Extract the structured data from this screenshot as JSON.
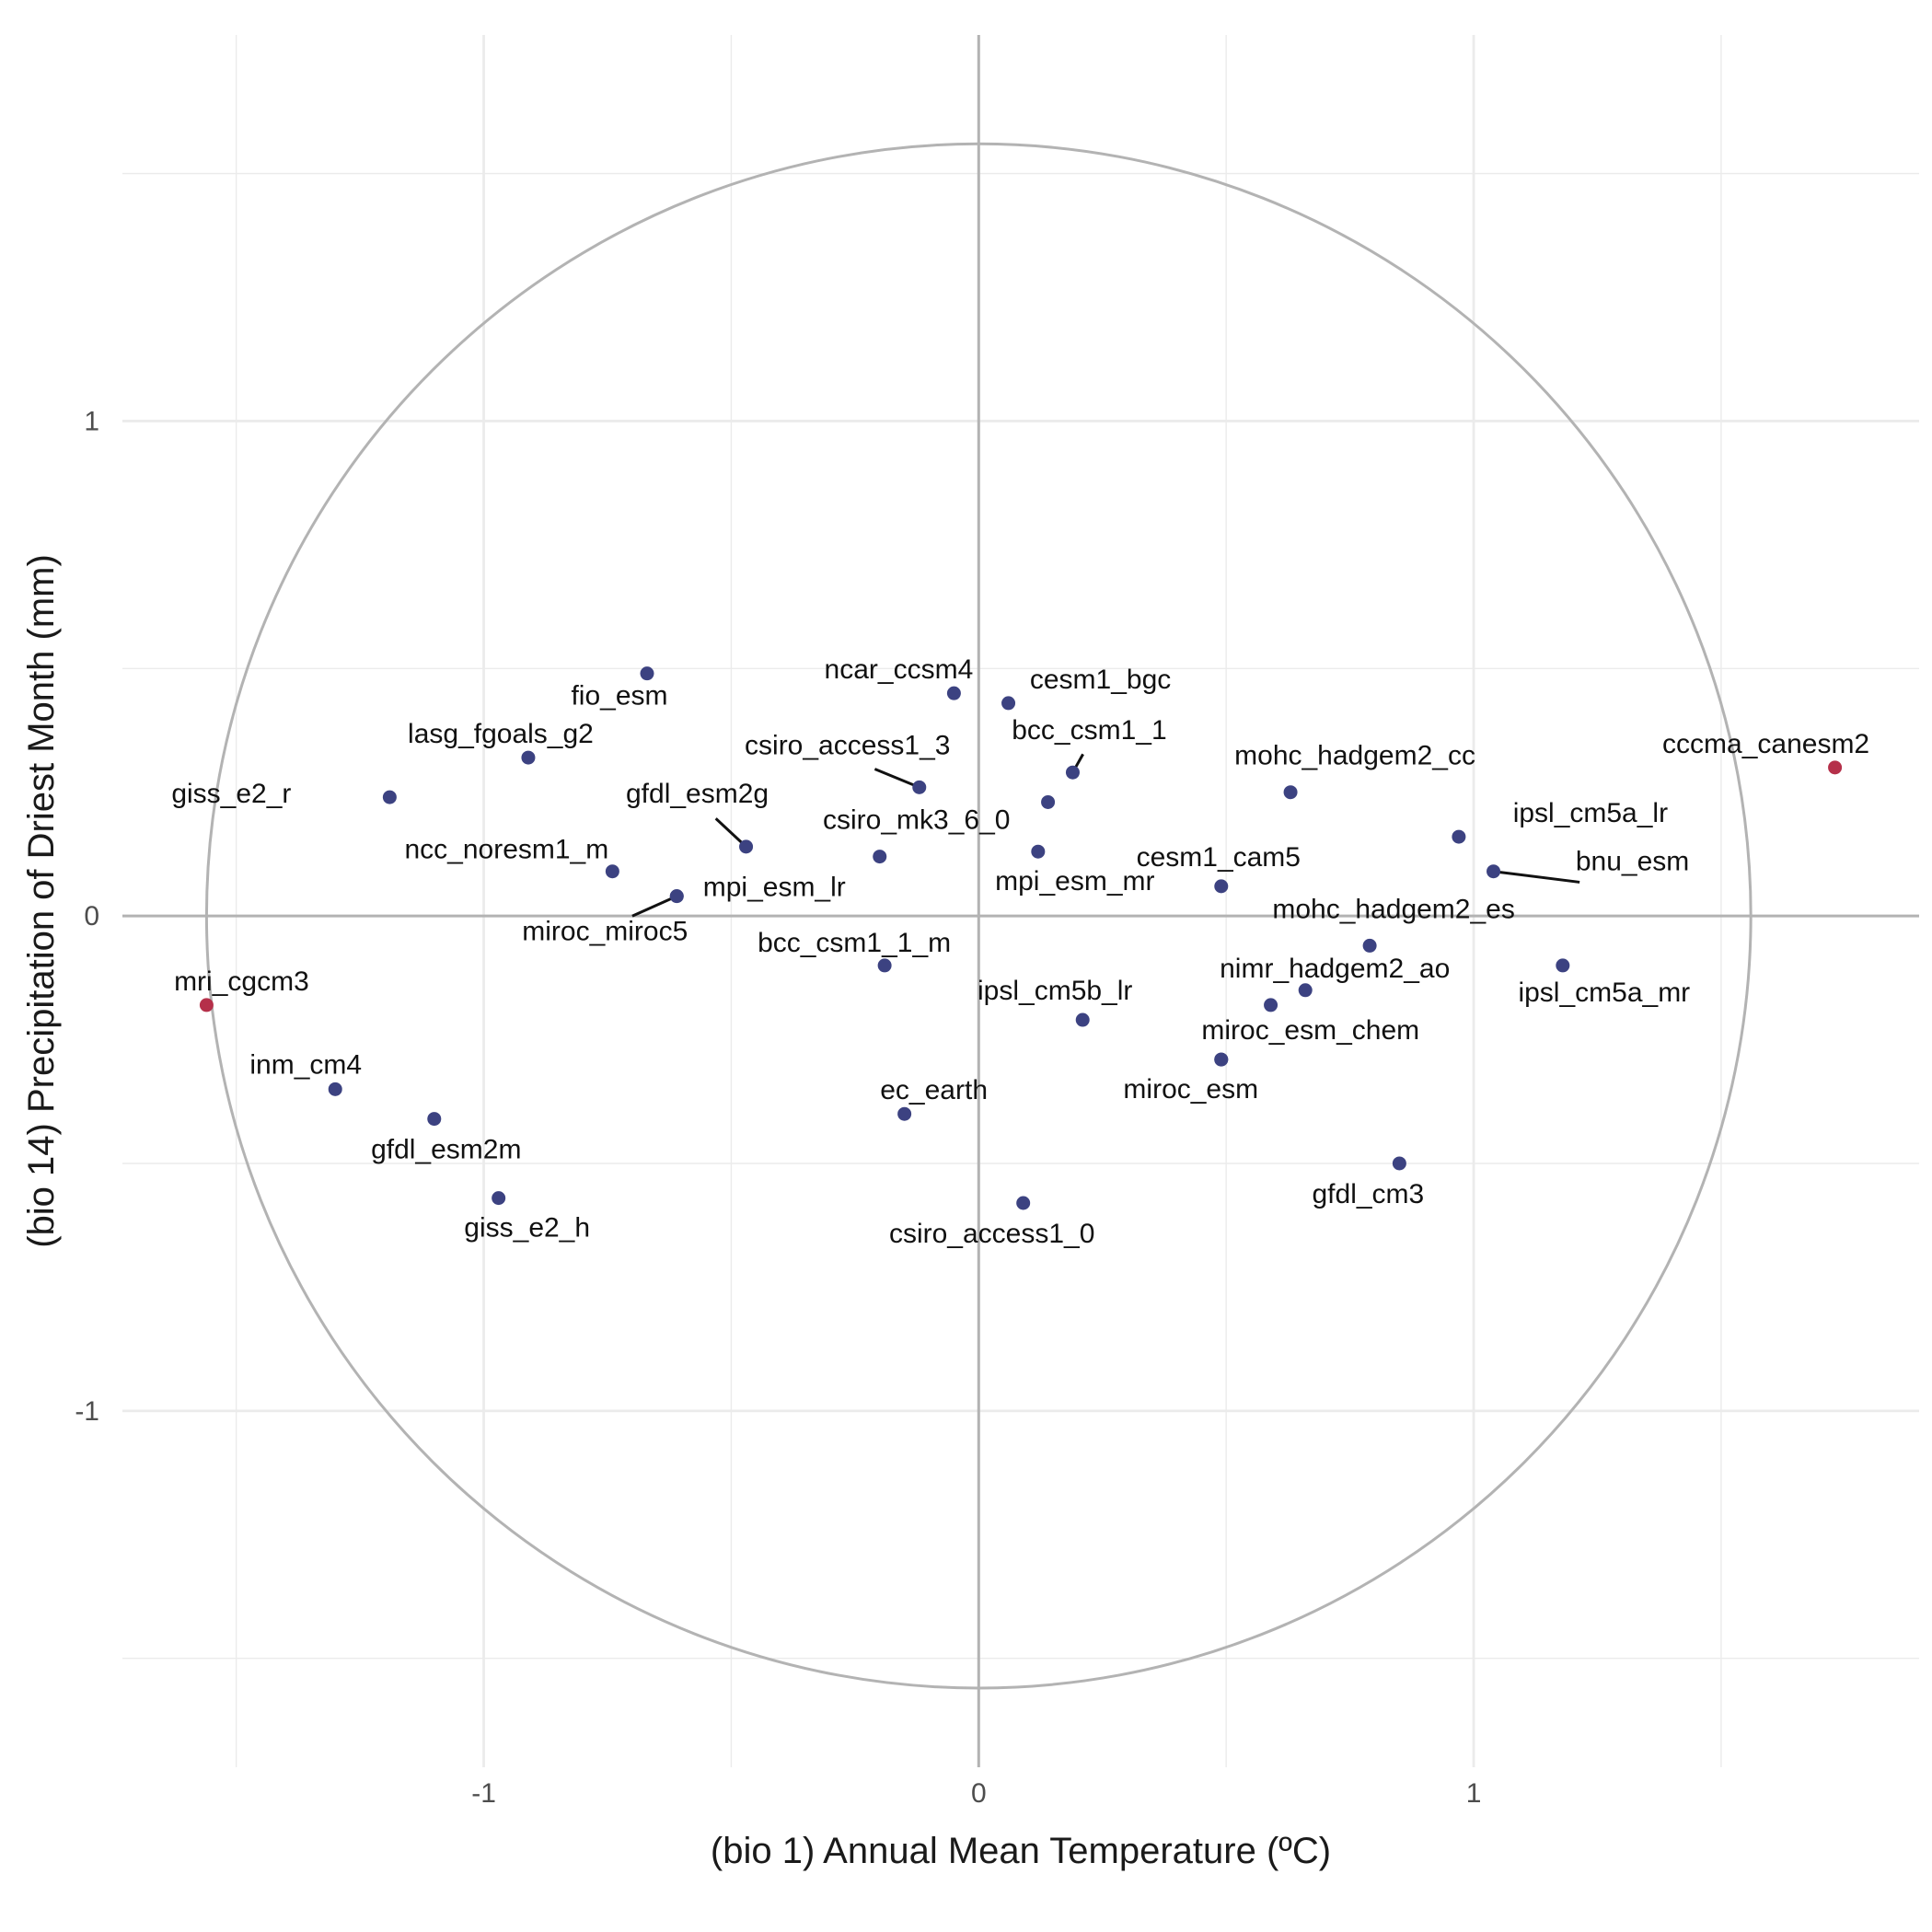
{
  "chart_data": {
    "type": "scatter",
    "xlabel": "(bio 1) Annual Mean Temperature (ºC)",
    "ylabel": "(bio 14) Precipitation of Driest Month (mm)",
    "xlim": [
      -1.73,
      1.9
    ],
    "ylim": [
      -1.72,
      1.78
    ],
    "x_ticks": [
      -1,
      0,
      1
    ],
    "y_ticks": [
      -1,
      0,
      1
    ],
    "grid": true,
    "reference_circle_radius": 1.56,
    "colors": {
      "normal": "#3c4281",
      "highlight": "#b5304a",
      "circle": "#b3b3b3",
      "grid": "#ebebeb",
      "zero_axis": "#b3b3b3"
    },
    "points": [
      {
        "label": "fio_esm",
        "x": -0.67,
        "y": 0.49,
        "highlight": false
      },
      {
        "label": "ncar_ccsm4",
        "x": -0.05,
        "y": 0.45,
        "highlight": false
      },
      {
        "label": "cesm1_bgc",
        "x": 0.06,
        "y": 0.43,
        "highlight": false
      },
      {
        "label": "lasg_fgoals_g2",
        "x": -0.91,
        "y": 0.32,
        "highlight": false
      },
      {
        "label": "csiro_access1_3",
        "x": -0.12,
        "y": 0.26,
        "highlight": false
      },
      {
        "label": "bcc_csm1_1",
        "x": 0.19,
        "y": 0.29,
        "highlight": false
      },
      {
        "label": "mohc_hadgem2_cc",
        "x": 0.63,
        "y": 0.25,
        "highlight": false
      },
      {
        "label": "cccma_canesm2",
        "x": 1.73,
        "y": 0.3,
        "highlight": true
      },
      {
        "label": "giss_e2_r",
        "x": -1.19,
        "y": 0.24,
        "highlight": false
      },
      {
        "label": "gfdl_esm2g",
        "x": -0.47,
        "y": 0.14,
        "highlight": false
      },
      {
        "label": "",
        "x": 0.14,
        "y": 0.23,
        "highlight": false
      },
      {
        "label": "csiro_mk3_6_0",
        "x": -0.2,
        "y": 0.12,
        "highlight": false
      },
      {
        "label": "mpi_esm_mr",
        "x": 0.12,
        "y": 0.13,
        "highlight": false
      },
      {
        "label": "ipsl_cm5a_lr",
        "x": 0.97,
        "y": 0.16,
        "highlight": false
      },
      {
        "label": "bnu_esm",
        "x": 1.04,
        "y": 0.09,
        "highlight": false
      },
      {
        "label": "ncc_noresm1_m",
        "x": -0.74,
        "y": 0.09,
        "highlight": false
      },
      {
        "label": "mpi_esm_lr",
        "x": -0.61,
        "y": 0.04,
        "highlight": false
      },
      {
        "label": "miroc_miroc5",
        "x": -0.61,
        "y": 0.04,
        "highlight": false
      },
      {
        "label": "cesm1_cam5",
        "x": 0.49,
        "y": 0.06,
        "highlight": false
      },
      {
        "label": "mohc_hadgem2_es",
        "x": 0.79,
        "y": -0.06,
        "highlight": false
      },
      {
        "label": "bcc_csm1_1_m",
        "x": -0.19,
        "y": -0.1,
        "highlight": false
      },
      {
        "label": "nimr_hadgem2_ao",
        "x": 0.66,
        "y": -0.15,
        "highlight": false
      },
      {
        "label": "ipsl_cm5a_mr",
        "x": 1.18,
        "y": -0.1,
        "highlight": false
      },
      {
        "label": "",
        "x": 0.59,
        "y": -0.18,
        "highlight": false
      },
      {
        "label": "mri_cgcm3",
        "x": -1.56,
        "y": -0.18,
        "highlight": true
      },
      {
        "label": "ipsl_cm5b_lr",
        "x": 0.21,
        "y": -0.21,
        "highlight": false
      },
      {
        "label": "miroc_esm_chem",
        "x": 0.49,
        "y": -0.29,
        "highlight": false
      },
      {
        "label": "miroc_esm",
        "x": 0.49,
        "y": -0.29,
        "highlight": false
      },
      {
        "label": "inm_cm4",
        "x": -1.3,
        "y": -0.35,
        "highlight": false
      },
      {
        "label": "ec_earth",
        "x": -0.15,
        "y": -0.4,
        "highlight": false
      },
      {
        "label": "gfdl_esm2m",
        "x": -1.1,
        "y": -0.41,
        "highlight": false
      },
      {
        "label": "gfdl_cm3",
        "x": 0.85,
        "y": -0.5,
        "highlight": false
      },
      {
        "label": "giss_e2_h",
        "x": -0.97,
        "y": -0.57,
        "highlight": false
      },
      {
        "label": "csiro_access1_0",
        "x": 0.09,
        "y": -0.58,
        "highlight": false
      }
    ]
  }
}
